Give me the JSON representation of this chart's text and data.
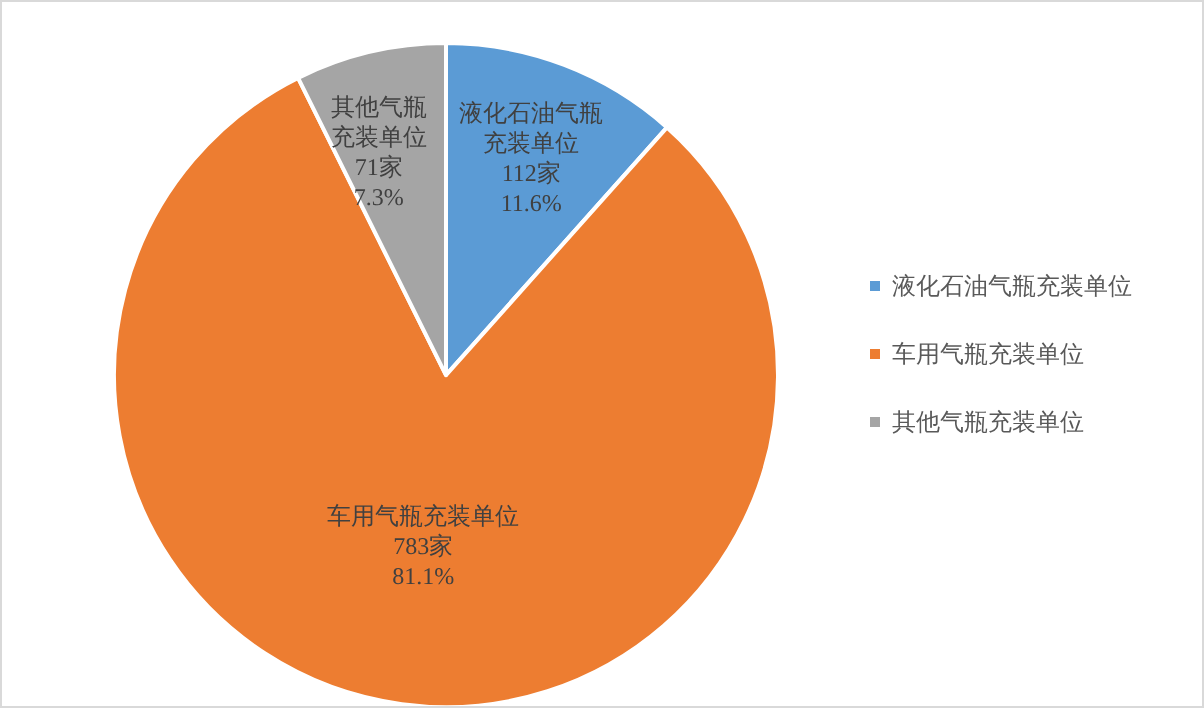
{
  "chart_data": {
    "type": "pie",
    "categories": [
      "液化石油气瓶充装单位",
      "车用气瓶充装单位",
      "其他气瓶充装单位"
    ],
    "values": [
      112,
      783,
      71
    ],
    "colors": [
      "#5b9bd5",
      "#ed7d31",
      "#a5a5a5"
    ],
    "value_labels": [
      "液化石油气瓶充装单位\n112家\n11.6%",
      "车用气瓶充装单位\n783家\n81.1%",
      "其他气瓶充装单位\n71家\n7.3%"
    ],
    "legend": "right"
  }
}
